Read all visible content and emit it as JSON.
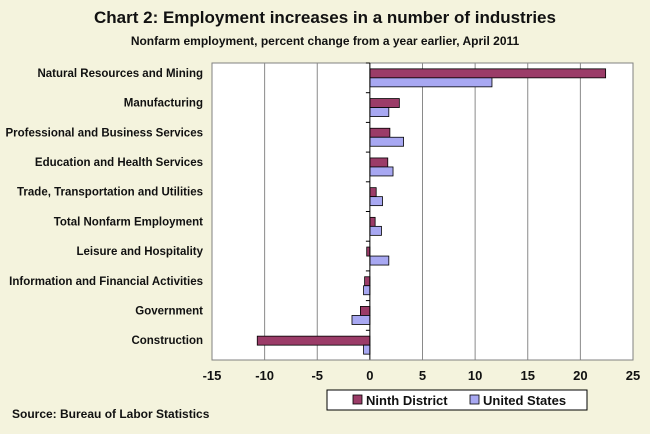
{
  "chart_data": {
    "type": "bar",
    "orientation": "horizontal",
    "title": "Chart 2: Employment increases in a number of industries",
    "subtitle": "Nonfarm employment, percent change from a year earlier, April 2011",
    "source": "Source: Bureau of Labor Statistics",
    "categories": [
      "Natural Resources and Mining",
      "Manufacturing",
      "Professional and Business Services",
      "Education and Health Services",
      "Trade, Transportation and Utilities",
      "Total Nonfarm Employment",
      "Leisure and Hospitality",
      "Information and Financial Activities",
      "Government",
      "Construction"
    ],
    "series": [
      {
        "name": "Ninth District",
        "color": "#9b3c68",
        "values": [
          22.4,
          2.8,
          1.9,
          1.7,
          0.6,
          0.5,
          -0.3,
          -0.5,
          -0.9,
          -10.7
        ]
      },
      {
        "name": "United States",
        "color": "#a8a8f2",
        "values": [
          11.6,
          1.8,
          3.2,
          2.2,
          1.2,
          1.1,
          1.8,
          -0.6,
          -1.7,
          -0.6
        ]
      }
    ],
    "xlim": [
      -15,
      25
    ],
    "xticks": [
      "-15",
      "-10",
      "-5",
      "0",
      "5",
      "10",
      "15",
      "20",
      "25"
    ],
    "grid": "vertical",
    "legend_position": "bottom"
  }
}
